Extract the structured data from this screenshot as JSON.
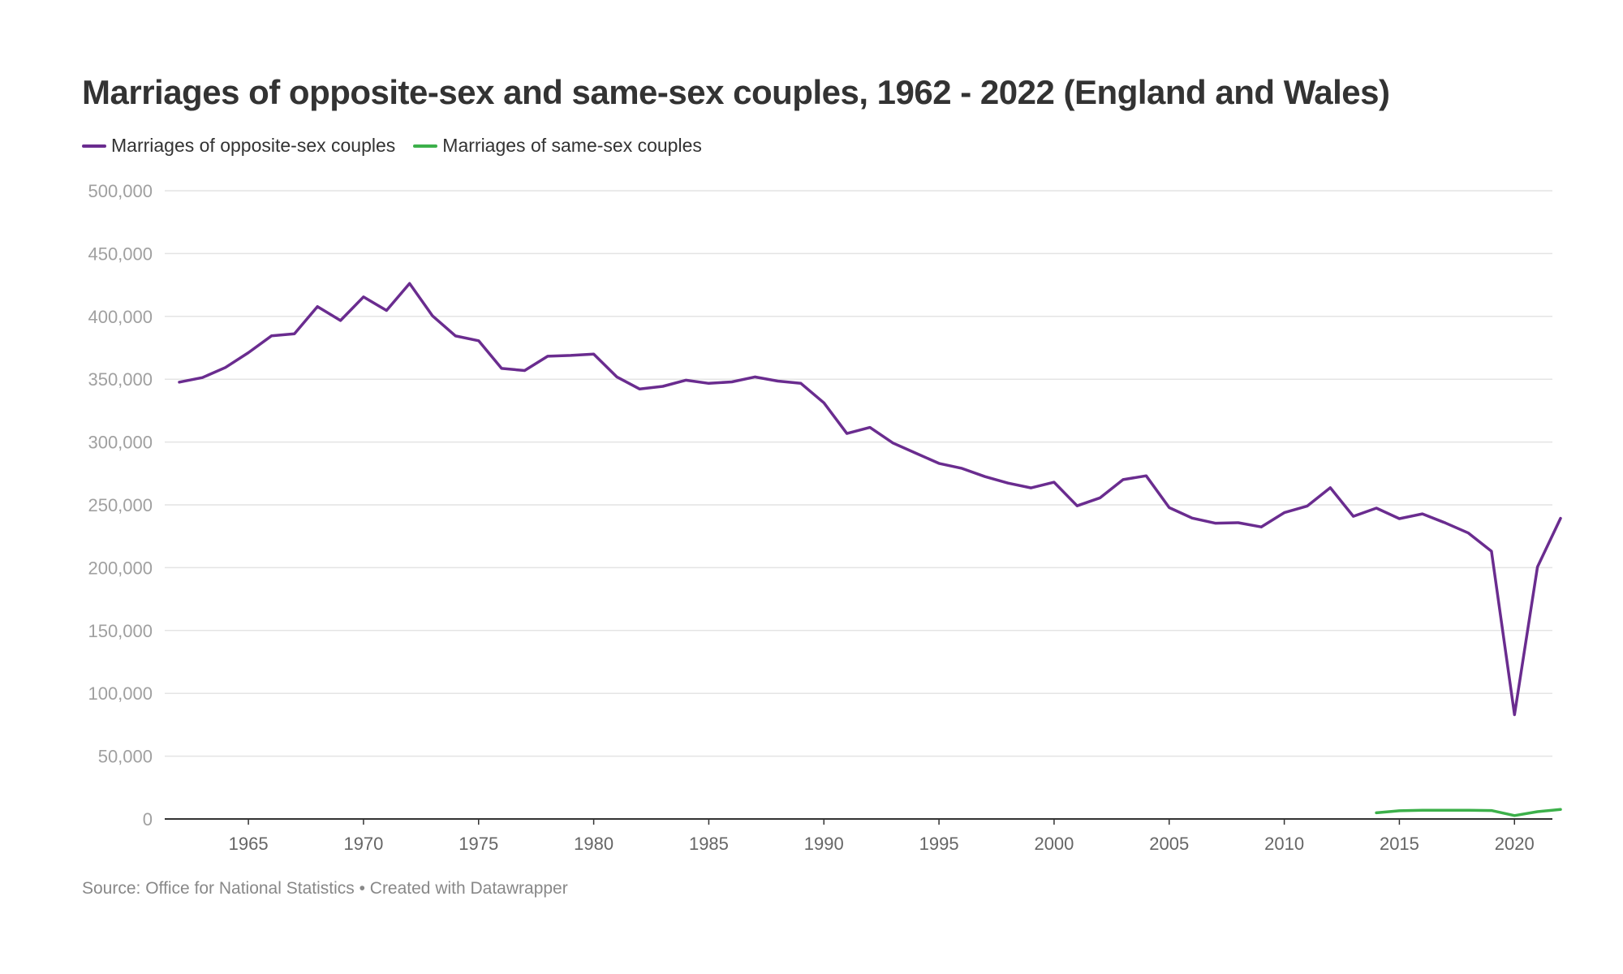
{
  "chart_data": {
    "type": "line",
    "title": "Marriages of opposite-sex and same-sex couples, 1962 - 2022 (England and Wales)",
    "source": "Source: Office for National Statistics • Created with Datawrapper",
    "ylim": [
      0,
      500000
    ],
    "xlim": [
      1962,
      2022
    ],
    "y_ticks": [
      {
        "value": 0,
        "label": "0"
      },
      {
        "value": 50000,
        "label": "50,000"
      },
      {
        "value": 100000,
        "label": "100,000"
      },
      {
        "value": 150000,
        "label": "150,000"
      },
      {
        "value": 200000,
        "label": "200,000"
      },
      {
        "value": 250000,
        "label": "250,000"
      },
      {
        "value": 300000,
        "label": "300,000"
      },
      {
        "value": 350000,
        "label": "350,000"
      },
      {
        "value": 400000,
        "label": "400,000"
      },
      {
        "value": 450000,
        "label": "450,000"
      },
      {
        "value": 500000,
        "label": "500,000"
      }
    ],
    "x_ticks": [
      {
        "value": 1965,
        "label": "1965"
      },
      {
        "value": 1970,
        "label": "1970"
      },
      {
        "value": 1975,
        "label": "1975"
      },
      {
        "value": 1980,
        "label": "1980"
      },
      {
        "value": 1985,
        "label": "1985"
      },
      {
        "value": 1990,
        "label": "1990"
      },
      {
        "value": 1995,
        "label": "1995"
      },
      {
        "value": 2000,
        "label": "2000"
      },
      {
        "value": 2005,
        "label": "2005"
      },
      {
        "value": 2010,
        "label": "2010"
      },
      {
        "value": 2015,
        "label": "2015"
      },
      {
        "value": 2020,
        "label": "2020"
      }
    ],
    "grid": true,
    "legend_position": "top-left",
    "series": [
      {
        "name": "Marriages of opposite-sex couples",
        "color": "#6a2c8f",
        "x": [
          1962,
          1963,
          1964,
          1965,
          1966,
          1967,
          1968,
          1969,
          1970,
          1971,
          1972,
          1973,
          1974,
          1975,
          1976,
          1977,
          1978,
          1979,
          1980,
          1981,
          1982,
          1983,
          1984,
          1985,
          1986,
          1987,
          1988,
          1989,
          1990,
          1991,
          1992,
          1993,
          1994,
          1995,
          1996,
          1997,
          1998,
          1999,
          2000,
          2001,
          2002,
          2003,
          2004,
          2005,
          2006,
          2007,
          2008,
          2009,
          2010,
          2011,
          2012,
          2013,
          2014,
          2015,
          2016,
          2017,
          2018,
          2019,
          2020,
          2021,
          2022
        ],
        "values": [
          347700,
          351300,
          359300,
          371100,
          384500,
          386100,
          407800,
          396700,
          415500,
          404700,
          426200,
          400400,
          384400,
          380600,
          358600,
          356900,
          368300,
          368900,
          370000,
          351900,
          342200,
          344300,
          349200,
          346700,
          347900,
          351800,
          348500,
          346700,
          331200,
          306800,
          311600,
          299200,
          291100,
          283000,
          279000,
          272500,
          267300,
          263500,
          268000,
          249200,
          255600,
          270100,
          273100,
          247800,
          239500,
          235400,
          235800,
          232400,
          243800,
          249100,
          263600,
          240900,
          247400,
          239000,
          242800,
          235600,
          227600,
          213100,
          83000,
          200600,
          239300
        ]
      },
      {
        "name": "Marriages of same-sex couples",
        "color": "#3cb04a",
        "x": [
          2014,
          2015,
          2016,
          2017,
          2018,
          2019,
          2020,
          2021,
          2022
        ],
        "values": [
          4900,
          6500,
          7000,
          6900,
          6900,
          6700,
          2700,
          5800,
          7600
        ]
      }
    ]
  }
}
